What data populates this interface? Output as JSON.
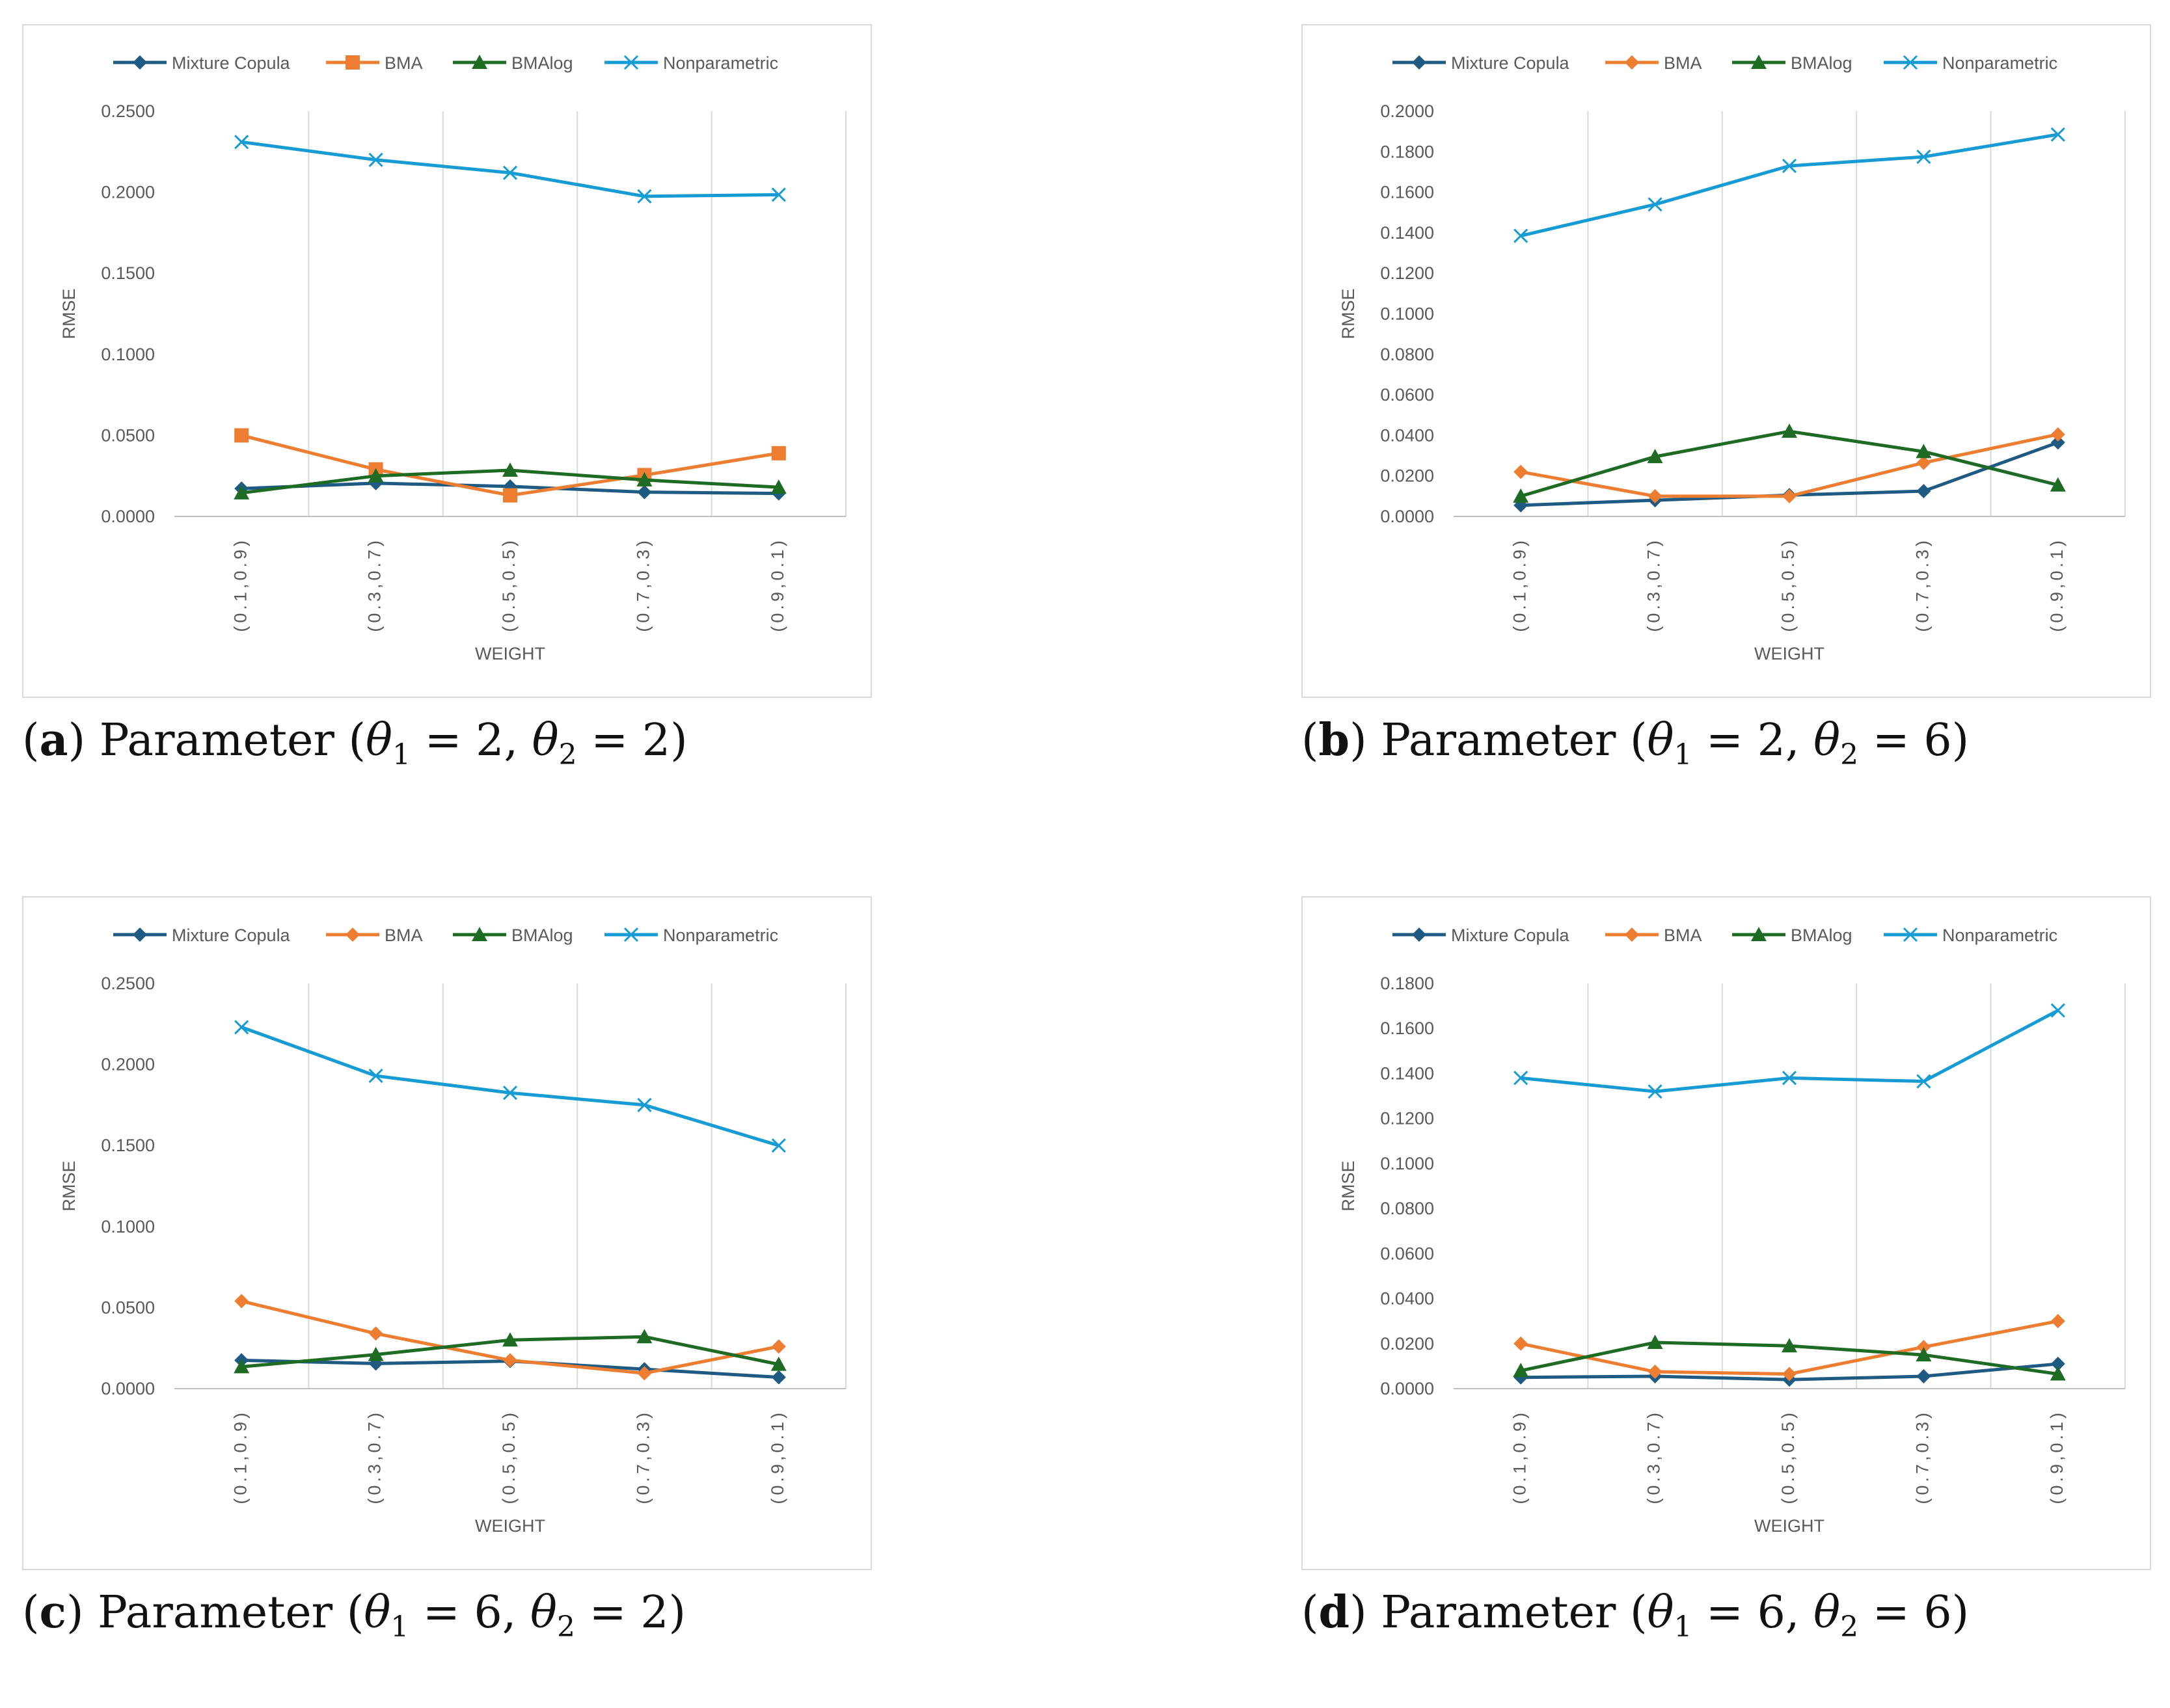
{
  "chart_data": [
    {
      "type": "line",
      "panel_label": "a",
      "caption_text": "Parameter",
      "theta1_value": "2",
      "theta2_value": "2",
      "xlabel": "WEIGHT",
      "ylabel": "RMSE",
      "categories": [
        "(0.1,0.9)",
        "(0.3,0.7)",
        "(0.5,0.5)",
        "(0.7,0.3)",
        "(0.9,0.1)"
      ],
      "ylim": [
        0,
        0.25
      ],
      "yticks": [
        "0.0000",
        "0.0500",
        "0.1000",
        "0.1500",
        "0.2000",
        "0.2500"
      ],
      "series": [
        {
          "name": "Mixture Copula",
          "color": "#1f5a82",
          "marker": "diamond",
          "values": [
            0.0172,
            0.0205,
            0.0185,
            0.015,
            0.0142
          ]
        },
        {
          "name": "BMA",
          "color": "#ed7d31",
          "marker": "square",
          "values": [
            0.05,
            0.029,
            0.013,
            0.0255,
            0.039
          ]
        },
        {
          "name": "BMAlog",
          "color": "#1e6b23",
          "marker": "triangle",
          "values": [
            0.0145,
            0.025,
            0.0285,
            0.0225,
            0.018
          ]
        },
        {
          "name": "Nonparametric",
          "color": "#169bd5",
          "marker": "x",
          "values": [
            0.231,
            0.22,
            0.212,
            0.1975,
            0.1985
          ]
        }
      ]
    },
    {
      "type": "line",
      "panel_label": "b",
      "caption_text": "Parameter",
      "theta1_value": "2",
      "theta2_value": "6",
      "xlabel": "WEIGHT",
      "ylabel": "RMSE",
      "categories": [
        "(0.1,0.9)",
        "(0.3,0.7)",
        "(0.5,0.5)",
        "(0.7,0.3)",
        "(0.9,0.1)"
      ],
      "ylim": [
        0,
        0.2
      ],
      "yticks": [
        "0.0000",
        "0.0200",
        "0.0400",
        "0.0600",
        "0.0800",
        "0.1000",
        "0.1200",
        "0.1400",
        "0.1600",
        "0.1800",
        "0.2000"
      ],
      "series": [
        {
          "name": "Mixture Copula",
          "color": "#1f5a82",
          "marker": "diamond",
          "values": [
            0.0055,
            0.008,
            0.0105,
            0.0125,
            0.0365
          ]
        },
        {
          "name": "BMA",
          "color": "#ed7d31",
          "marker": "diamond",
          "values": [
            0.022,
            0.01,
            0.01,
            0.0265,
            0.0405
          ]
        },
        {
          "name": "BMAlog",
          "color": "#1e6b23",
          "marker": "triangle",
          "values": [
            0.01,
            0.0295,
            0.042,
            0.032,
            0.0155
          ]
        },
        {
          "name": "Nonparametric",
          "color": "#169bd5",
          "marker": "x",
          "values": [
            0.1385,
            0.154,
            0.173,
            0.1775,
            0.1885
          ]
        }
      ]
    },
    {
      "type": "line",
      "panel_label": "c",
      "caption_text": "Parameter",
      "theta1_value": "6",
      "theta2_value": "2",
      "xlabel": "WEIGHT",
      "ylabel": "RMSE",
      "categories": [
        "(0.1,0.9)",
        "(0.3,0.7)",
        "(0.5,0.5)",
        "(0.7,0.3)",
        "(0.9,0.1)"
      ],
      "ylim": [
        0,
        0.25
      ],
      "yticks": [
        "0.0000",
        "0.0500",
        "0.1000",
        "0.1500",
        "0.2000",
        "0.2500"
      ],
      "series": [
        {
          "name": "Mixture Copula",
          "color": "#1f5a82",
          "marker": "diamond",
          "values": [
            0.0175,
            0.0155,
            0.017,
            0.012,
            0.007
          ]
        },
        {
          "name": "BMA",
          "color": "#ed7d31",
          "marker": "diamond",
          "values": [
            0.054,
            0.034,
            0.0175,
            0.0095,
            0.026
          ]
        },
        {
          "name": "BMAlog",
          "color": "#1e6b23",
          "marker": "triangle",
          "values": [
            0.0135,
            0.021,
            0.03,
            0.032,
            0.015
          ]
        },
        {
          "name": "Nonparametric",
          "color": "#169bd5",
          "marker": "x",
          "values": [
            0.223,
            0.193,
            0.1825,
            0.175,
            0.15
          ]
        }
      ]
    },
    {
      "type": "line",
      "panel_label": "d",
      "caption_text": "Parameter",
      "theta1_value": "6",
      "theta2_value": "6",
      "xlabel": "WEIGHT",
      "ylabel": "RMSE",
      "categories": [
        "(0.1,0.9)",
        "(0.3,0.7)",
        "(0.5,0.5)",
        "(0.7,0.3)",
        "(0.9,0.1)"
      ],
      "ylim": [
        0,
        0.18
      ],
      "yticks": [
        "0.0000",
        "0.0200",
        "0.0400",
        "0.0600",
        "0.0800",
        "0.1000",
        "0.1200",
        "0.1400",
        "0.1600",
        "0.1800"
      ],
      "series": [
        {
          "name": "Mixture Copula",
          "color": "#1f5a82",
          "marker": "diamond",
          "values": [
            0.005,
            0.0055,
            0.004,
            0.0055,
            0.011
          ]
        },
        {
          "name": "BMA",
          "color": "#ed7d31",
          "marker": "diamond",
          "values": [
            0.02,
            0.0075,
            0.0065,
            0.0185,
            0.03
          ]
        },
        {
          "name": "BMAlog",
          "color": "#1e6b23",
          "marker": "triangle",
          "values": [
            0.008,
            0.0205,
            0.019,
            0.015,
            0.0065
          ]
        },
        {
          "name": "Nonparametric",
          "color": "#169bd5",
          "marker": "x",
          "values": [
            0.138,
            0.132,
            0.138,
            0.1365,
            0.168
          ]
        }
      ]
    }
  ]
}
